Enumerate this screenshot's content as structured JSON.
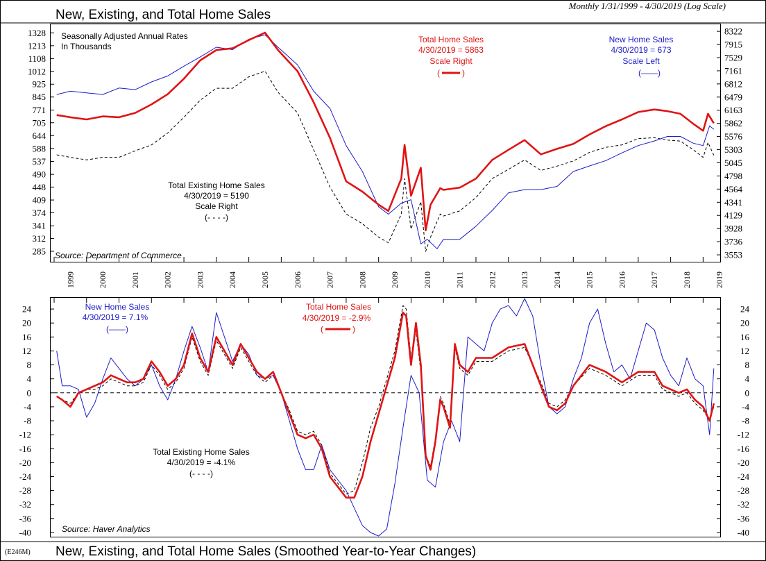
{
  "header": {
    "title": "New, Existing, and Total Home Sales",
    "subtitle": "Monthly 1/31/1999 - 4/30/2019 (Log Scale)"
  },
  "footer": {
    "code": "(E246M)",
    "title": "New, Existing, and Total Home Sales (Smoothed Year-to-Year Changes)"
  },
  "colors": {
    "new": "#1c1cc8",
    "total": "#e01414",
    "existing": "#000000"
  },
  "chart_data": [
    {
      "type": "line",
      "title": "New, Existing, and Total Home Sales",
      "units_line1": "Seasonally Adjusted Annual Rates",
      "units_line2": "In Thousands",
      "source": "Source: Department of Commerce",
      "left_scale": {
        "type": "log",
        "ylim": [
          266,
          1390
        ],
        "ticks": [
          285,
          312,
          341,
          374,
          409,
          448,
          490,
          537,
          588,
          644,
          705,
          771,
          845,
          925,
          1012,
          1108,
          1213,
          1328
        ]
      },
      "right_scale": {
        "type": "log",
        "ylim": [
          3470,
          8480
        ],
        "ticks": [
          3553,
          3736,
          3928,
          4129,
          4341,
          4564,
          4798,
          5045,
          5303,
          5576,
          5862,
          6163,
          6479,
          6812,
          7161,
          7529,
          7915,
          8322
        ]
      },
      "x_years": [
        "1999",
        "2000",
        "2001",
        "2002",
        "2003",
        "2004",
        "2005",
        "2006",
        "2007",
        "2008",
        "2009",
        "2010",
        "2011",
        "2012",
        "2013",
        "2014",
        "2015",
        "2016",
        "2017",
        "2018",
        "2019"
      ],
      "legend": {
        "new": {
          "line1": "New Home Sales",
          "line2": "4/30/2019 = 673",
          "line3": "Scale Left",
          "line4": "(——)"
        },
        "total": {
          "line1": "Total Home Sales",
          "line2": "4/30/2019 = 5863",
          "line3": "Scale Right"
        },
        "existing": {
          "line1": "Total Existing Home Sales",
          "line2": "4/30/2019 = 5190",
          "line3": "Scale Right",
          "line4": "(- - - -)"
        }
      },
      "series": [
        {
          "name": "New Home Sales",
          "scale": "left",
          "t": [
            1999.08,
            1999.5,
            2000.0,
            2000.5,
            2001.0,
            2001.5,
            2002.0,
            2002.5,
            2003.0,
            2003.5,
            2004.0,
            2004.5,
            2005.0,
            2005.5,
            2005.9,
            2006.5,
            2007.0,
            2007.5,
            2008.0,
            2008.5,
            2009.0,
            2009.3,
            2009.7,
            2010.0,
            2010.3,
            2010.5,
            2010.8,
            2011.0,
            2011.5,
            2012.0,
            2012.5,
            2013.0,
            2013.5,
            2014.0,
            2014.5,
            2015.0,
            2015.5,
            2016.0,
            2016.5,
            2017.0,
            2017.5,
            2017.9,
            2018.3,
            2018.7,
            2019.0,
            2019.2,
            2019.33
          ],
          "values": [
            860,
            880,
            870,
            860,
            900,
            890,
            940,
            980,
            1050,
            1120,
            1200,
            1180,
            1270,
            1310,
            1200,
            1060,
            880,
            780,
            600,
            500,
            390,
            370,
            400,
            410,
            300,
            310,
            290,
            310,
            310,
            340,
            380,
            430,
            440,
            440,
            450,
            500,
            520,
            540,
            570,
            600,
            620,
            640,
            640,
            610,
            600,
            690,
            673
          ]
        },
        {
          "name": "Total Home Sales",
          "scale": "right",
          "t": [
            1999.08,
            1999.5,
            2000.0,
            2000.5,
            2001.0,
            2001.5,
            2002.0,
            2002.5,
            2003.0,
            2003.5,
            2004.0,
            2004.5,
            2005.0,
            2005.5,
            2005.9,
            2006.5,
            2007.0,
            2007.5,
            2008.0,
            2008.5,
            2009.0,
            2009.3,
            2009.7,
            2009.8,
            2010.0,
            2010.3,
            2010.45,
            2010.6,
            2010.9,
            2011.0,
            2011.5,
            2012.0,
            2012.5,
            2013.0,
            2013.5,
            2014.0,
            2014.5,
            2015.0,
            2015.5,
            2016.0,
            2016.5,
            2017.0,
            2017.5,
            2017.9,
            2018.3,
            2018.7,
            2019.0,
            2019.15,
            2019.33
          ],
          "values": [
            6050,
            6000,
            5950,
            6020,
            6000,
            6100,
            6300,
            6550,
            6950,
            7450,
            7750,
            7800,
            8050,
            8280,
            7750,
            7150,
            6350,
            5550,
            4700,
            4520,
            4300,
            4200,
            4750,
            5400,
            4450,
            4950,
            3900,
            4300,
            4580,
            4550,
            4590,
            4750,
            5100,
            5300,
            5500,
            5210,
            5320,
            5420,
            5620,
            5800,
            5950,
            6120,
            6180,
            6140,
            6080,
            5850,
            5700,
            6080,
            5863
          ]
        },
        {
          "name": "Total Existing Home Sales",
          "scale": "right",
          "t": [
            1999.08,
            1999.5,
            2000.0,
            2000.5,
            2001.0,
            2001.5,
            2002.0,
            2002.5,
            2003.0,
            2003.5,
            2004.0,
            2004.5,
            2005.0,
            2005.5,
            2005.9,
            2006.5,
            2007.0,
            2007.5,
            2008.0,
            2008.5,
            2009.0,
            2009.3,
            2009.7,
            2009.8,
            2010.0,
            2010.3,
            2010.45,
            2010.6,
            2010.9,
            2011.0,
            2011.5,
            2012.0,
            2012.5,
            2013.0,
            2013.5,
            2014.0,
            2014.5,
            2015.0,
            2015.5,
            2016.0,
            2016.5,
            2017.0,
            2017.5,
            2017.9,
            2018.3,
            2018.7,
            2019.0,
            2019.15,
            2019.33
          ],
          "values": [
            5200,
            5150,
            5100,
            5150,
            5150,
            5280,
            5400,
            5650,
            6000,
            6400,
            6700,
            6700,
            7000,
            7150,
            6600,
            6100,
            5300,
            4600,
            4150,
            4000,
            3800,
            3720,
            4150,
            4750,
            3920,
            4350,
            3600,
            3800,
            4150,
            4120,
            4200,
            4420,
            4750,
            4920,
            5100,
            4900,
            4980,
            5080,
            5250,
            5350,
            5400,
            5530,
            5550,
            5500,
            5480,
            5300,
            5150,
            5450,
            5190
          ]
        }
      ]
    },
    {
      "type": "line",
      "title": "New, Existing, and Total Home Sales (Smoothed Year-to-Year Changes)",
      "source": "Source: Haver Analytics",
      "y_scale": {
        "ylim": [
          -41,
          27
        ],
        "ticks": [
          24,
          20,
          16,
          12,
          8,
          4,
          0,
          -4,
          -8,
          -12,
          -16,
          -20,
          -24,
          -28,
          -32,
          -36,
          -40
        ]
      },
      "legend": {
        "new": {
          "line1": "New Home Sales",
          "line2": "4/30/2019 = 7.1%",
          "line3": "(——)"
        },
        "total": {
          "line1": "Total Home Sales",
          "line2": "4/30/2019 = -2.9%"
        },
        "existing": {
          "line1": "Total Existing Home Sales",
          "line2": "4/30/2019 = -4.1%",
          "line3": "(- - - -)"
        }
      },
      "series": [
        {
          "name": "New Home Sales",
          "t": [
            1999.08,
            1999.25,
            1999.5,
            1999.75,
            2000.0,
            2000.25,
            2000.5,
            2000.75,
            2001.0,
            2001.25,
            2001.5,
            2001.75,
            2002.0,
            2002.25,
            2002.5,
            2002.75,
            2003.0,
            2003.25,
            2003.5,
            2003.75,
            2004.0,
            2004.25,
            2004.5,
            2004.75,
            2005.0,
            2005.25,
            2005.5,
            2005.75,
            2006.0,
            2006.25,
            2006.5,
            2006.75,
            2007.0,
            2007.25,
            2007.5,
            2007.75,
            2008.0,
            2008.25,
            2008.5,
            2008.75,
            2009.0,
            2009.25,
            2009.5,
            2009.75,
            2010.0,
            2010.25,
            2010.5,
            2010.75,
            2011.0,
            2011.25,
            2011.5,
            2011.75,
            2012.0,
            2012.25,
            2012.5,
            2012.75,
            2013.0,
            2013.25,
            2013.5,
            2013.75,
            2014.0,
            2014.25,
            2014.5,
            2014.75,
            2015.0,
            2015.25,
            2015.5,
            2015.75,
            2016.0,
            2016.25,
            2016.5,
            2016.75,
            2017.0,
            2017.25,
            2017.5,
            2017.75,
            2018.0,
            2018.25,
            2018.5,
            2018.75,
            2019.0,
            2019.2,
            2019.33
          ],
          "values": [
            12,
            2,
            2,
            1,
            -7,
            -3,
            4,
            10,
            7,
            4,
            2,
            4,
            8,
            2,
            -2,
            4,
            12,
            19,
            13,
            6,
            23,
            16,
            9,
            14,
            11,
            5,
            4,
            5,
            0,
            -8,
            -16,
            -22,
            -22,
            -15,
            -22,
            -25,
            -28,
            -33,
            -38,
            -40,
            -41,
            -39,
            -26,
            -10,
            5,
            0,
            -25,
            -27,
            -14,
            -8,
            -14,
            16,
            14,
            12,
            20,
            24,
            25,
            22,
            27,
            22,
            8,
            -4,
            -6,
            -4,
            4,
            10,
            20,
            24,
            14,
            6,
            8,
            4,
            12,
            20,
            18,
            10,
            5,
            2,
            10,
            4,
            2,
            -12,
            7
          ]
        },
        {
          "name": "Total Home Sales",
          "t": [
            1999.08,
            1999.25,
            1999.5,
            1999.75,
            2000.0,
            2000.25,
            2000.5,
            2000.75,
            2001.0,
            2001.25,
            2001.5,
            2001.75,
            2002.0,
            2002.25,
            2002.5,
            2002.75,
            2003.0,
            2003.25,
            2003.5,
            2003.75,
            2004.0,
            2004.25,
            2004.5,
            2004.75,
            2005.0,
            2005.25,
            2005.5,
            2005.75,
            2006.0,
            2006.25,
            2006.5,
            2006.75,
            2007.0,
            2007.25,
            2007.5,
            2007.75,
            2008.0,
            2008.25,
            2008.5,
            2008.75,
            2009.0,
            2009.25,
            2009.5,
            2009.75,
            2009.85,
            2010.0,
            2010.15,
            2010.3,
            2010.45,
            2010.6,
            2010.75,
            2010.9,
            2011.0,
            2011.2,
            2011.35,
            2011.5,
            2011.75,
            2012.0,
            2012.5,
            2013.0,
            2013.5,
            2014.0,
            2014.25,
            2014.5,
            2014.75,
            2015.0,
            2015.5,
            2016.0,
            2016.5,
            2017.0,
            2017.5,
            2017.75,
            2018.0,
            2018.25,
            2018.5,
            2018.75,
            2019.0,
            2019.2,
            2019.33
          ],
          "values": [
            -1,
            -2,
            -4,
            0,
            1,
            2,
            3,
            5,
            4,
            3,
            3,
            4,
            9,
            6,
            2,
            4,
            8,
            17,
            10,
            6,
            16,
            12,
            8,
            14,
            10,
            6,
            4,
            6,
            0,
            -6,
            -12,
            -13,
            -12,
            -16,
            -24,
            -27,
            -30,
            -30,
            -24,
            -14,
            -6,
            2,
            10,
            23,
            22,
            8,
            20,
            8,
            -18,
            -22,
            -14,
            -2,
            -4,
            -10,
            14,
            8,
            6,
            10,
            10,
            13,
            14,
            2,
            -4,
            -5,
            -3,
            2,
            8,
            6,
            3,
            6,
            6,
            2,
            1,
            0,
            1,
            -2,
            -4,
            -8,
            -3
          ]
        },
        {
          "name": "Total Existing Home Sales",
          "t": [
            1999.08,
            1999.25,
            1999.5,
            1999.75,
            2000.0,
            2000.25,
            2000.5,
            2000.75,
            2001.0,
            2001.25,
            2001.5,
            2001.75,
            2002.0,
            2002.25,
            2002.5,
            2002.75,
            2003.0,
            2003.25,
            2003.5,
            2003.75,
            2004.0,
            2004.25,
            2004.5,
            2004.75,
            2005.0,
            2005.25,
            2005.5,
            2005.75,
            2006.0,
            2006.25,
            2006.5,
            2006.75,
            2007.0,
            2007.25,
            2007.5,
            2007.75,
            2008.0,
            2008.25,
            2008.5,
            2008.75,
            2009.0,
            2009.25,
            2009.5,
            2009.75,
            2009.85,
            2010.0,
            2010.15,
            2010.3,
            2010.45,
            2010.6,
            2010.75,
            2010.9,
            2011.0,
            2011.2,
            2011.35,
            2011.5,
            2011.75,
            2012.0,
            2012.5,
            2013.0,
            2013.5,
            2014.0,
            2014.25,
            2014.5,
            2014.75,
            2015.0,
            2015.5,
            2016.0,
            2016.5,
            2017.0,
            2017.5,
            2017.75,
            2018.0,
            2018.25,
            2018.5,
            2018.75,
            2019.0,
            2019.2,
            2019.33
          ],
          "values": [
            -1,
            -2,
            -3,
            0,
            1,
            1,
            2,
            4,
            3,
            2,
            2,
            3,
            8,
            5,
            1,
            3,
            7,
            16,
            9,
            5,
            15,
            11,
            7,
            13,
            9,
            5,
            3,
            5,
            0,
            -5,
            -11,
            -12,
            -11,
            -15,
            -23,
            -26,
            -29,
            -28,
            -20,
            -10,
            -4,
            4,
            12,
            25,
            24,
            10,
            18,
            6,
            -18,
            -21,
            -13,
            -1,
            -3,
            -9,
            13,
            7,
            5,
            9,
            9,
            12,
            13,
            3,
            -3,
            -4,
            -2,
            2,
            7,
            5,
            2,
            5,
            5,
            1,
            0,
            -1,
            0,
            -3,
            -5,
            -8,
            -4
          ]
        }
      ]
    }
  ]
}
